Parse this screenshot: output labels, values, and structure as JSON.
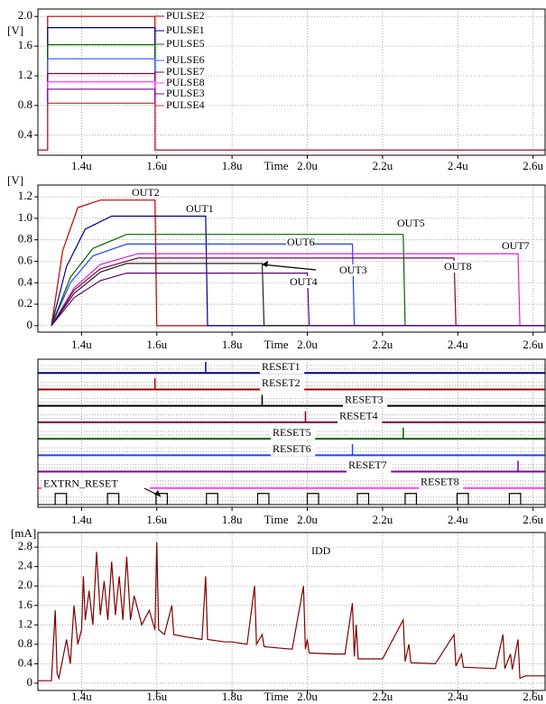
{
  "chart_data": [
    {
      "type": "line",
      "y_label": "[V]",
      "x_label": "Time",
      "xlim": [
        1.284,
        2.632
      ],
      "ylim": [
        0.13,
        2.1
      ],
      "xticks": [
        {
          "value": 1.4,
          "label": "1.4u"
        },
        {
          "value": 1.6,
          "label": "1.6u"
        },
        {
          "value": 1.8,
          "label": "1.8u"
        },
        {
          "value": 2.0,
          "label": "2.0u"
        },
        {
          "value": 2.2,
          "label": "2.2u"
        },
        {
          "value": 2.4,
          "label": "2.4u"
        },
        {
          "value": 2.6,
          "label": "2.6u"
        }
      ],
      "yticks": [
        0.4,
        0.8,
        1.2,
        1.6,
        {
          "value": 2,
          "label": "2.0"
        }
      ],
      "grid": true,
      "series": [
        {
          "name": "PULSE2",
          "color": "#c00000",
          "x": [
            1.284,
            1.31,
            1.31,
            1.595,
            1.595,
            2.632
          ],
          "values": [
            0.2,
            0.2,
            2.0,
            2.0,
            0.2,
            0.2
          ]
        },
        {
          "name": "PULSE1",
          "color": "#000080",
          "x": [
            1.284,
            1.31,
            1.31,
            1.595,
            1.595,
            2.632
          ],
          "values": [
            0.2,
            0.2,
            1.85,
            1.85,
            0.2,
            0.2
          ]
        },
        {
          "name": "PULSE5",
          "color": "#006400",
          "x": [
            1.284,
            1.31,
            1.31,
            1.595,
            1.595,
            2.632
          ],
          "values": [
            0.2,
            0.2,
            1.62,
            1.62,
            0.2,
            0.2
          ]
        },
        {
          "name": "PULSE6",
          "color": "#4060ff",
          "x": [
            1.284,
            1.31,
            1.31,
            1.595,
            1.595,
            2.632
          ],
          "values": [
            0.2,
            0.2,
            1.43,
            1.43,
            0.2,
            0.2
          ]
        },
        {
          "name": "PULSE7",
          "color": "#800040",
          "x": [
            1.284,
            1.31,
            1.31,
            1.595,
            1.595,
            2.632
          ],
          "values": [
            0.2,
            0.2,
            1.23,
            1.23,
            0.2,
            0.2
          ]
        },
        {
          "name": "PULSE8",
          "color": "#ff40ff",
          "x": [
            1.284,
            1.31,
            1.31,
            1.595,
            1.595,
            2.632
          ],
          "values": [
            0.2,
            0.2,
            1.12,
            1.12,
            0.2,
            0.2
          ]
        },
        {
          "name": "PULSE3",
          "color": "#8000a0",
          "x": [
            1.284,
            1.31,
            1.31,
            1.595,
            1.595,
            2.632
          ],
          "values": [
            0.2,
            0.2,
            1.02,
            1.02,
            0.2,
            0.2
          ]
        },
        {
          "name": "PULSE4",
          "color": "#c04040",
          "x": [
            1.284,
            1.31,
            1.31,
            1.595,
            1.595,
            2.632
          ],
          "values": [
            0.2,
            0.2,
            0.83,
            0.83,
            0.2,
            0.2
          ]
        }
      ]
    },
    {
      "type": "line",
      "y_label": "[V]",
      "x_label": "Time",
      "xlim": [
        1.284,
        2.632
      ],
      "ylim": [
        -0.06,
        1.31
      ],
      "xticks": [
        {
          "value": 1.4,
          "label": "1.4u"
        },
        {
          "value": 1.6,
          "label": "1.6u"
        },
        {
          "value": 1.8,
          "label": "1.8u"
        },
        {
          "value": 2.0,
          "label": "2.0u"
        },
        {
          "value": 2.2,
          "label": "2.2u"
        },
        {
          "value": 2.4,
          "label": "2.4u"
        },
        {
          "value": 2.6,
          "label": "2.6u"
        }
      ],
      "yticks": [
        0,
        0.2,
        0.4,
        0.6,
        0.8,
        {
          "value": 1,
          "label": "1.0"
        },
        1.2
      ],
      "grid": true,
      "series": [
        {
          "name": "OUT2",
          "color": "#c00000",
          "x": [
            1.32,
            1.35,
            1.39,
            1.45,
            1.595,
            1.6,
            2.632
          ],
          "values": [
            0,
            0.7,
            1.1,
            1.17,
            1.17,
            0,
            0
          ]
        },
        {
          "name": "OUT1",
          "color": "#000080",
          "x": [
            1.32,
            1.36,
            1.41,
            1.48,
            1.73,
            1.735,
            2.632
          ],
          "values": [
            0,
            0.55,
            0.9,
            1.02,
            1.02,
            0,
            0
          ]
        },
        {
          "name": "OUT6",
          "color": "#2040ff",
          "x": [
            1.32,
            1.37,
            1.43,
            1.52,
            2.12,
            2.125,
            2.632
          ],
          "values": [
            0,
            0.4,
            0.65,
            0.76,
            0.76,
            0,
            0
          ]
        },
        {
          "name": "OUT5",
          "color": "#006400",
          "x": [
            1.32,
            1.37,
            1.43,
            1.52,
            2.255,
            2.26,
            2.632
          ],
          "values": [
            0,
            0.45,
            0.72,
            0.85,
            0.85,
            0,
            0
          ]
        },
        {
          "name": "OUT7",
          "color": "#d020d0",
          "x": [
            1.32,
            1.38,
            1.45,
            1.55,
            2.56,
            2.565,
            2.632
          ],
          "values": [
            0,
            0.35,
            0.57,
            0.67,
            0.67,
            0,
            0
          ]
        },
        {
          "name": "OUT8",
          "color": "#800040",
          "x": [
            1.32,
            1.38,
            1.45,
            1.55,
            2.39,
            2.395,
            2.632
          ],
          "values": [
            0,
            0.33,
            0.53,
            0.63,
            0.63,
            0,
            0
          ]
        },
        {
          "name": "OUT3",
          "color": "#202020",
          "x": [
            1.32,
            1.38,
            1.45,
            1.52,
            1.88,
            1.885,
            2.632
          ],
          "values": [
            0,
            0.3,
            0.5,
            0.58,
            0.58,
            0,
            0
          ]
        },
        {
          "name": "OUT4",
          "color": "#600080",
          "x": [
            1.32,
            1.38,
            1.45,
            1.52,
            2.0,
            2.005,
            2.632
          ],
          "values": [
            0,
            0.26,
            0.42,
            0.49,
            0.49,
            0,
            0
          ]
        }
      ]
    },
    {
      "type": "digital",
      "x_label": "Time",
      "xlim": [
        1.284,
        2.632
      ],
      "xticks": [
        {
          "value": 1.4,
          "label": "1.4u"
        },
        {
          "value": 1.6,
          "label": "1.6u"
        },
        {
          "value": 1.8,
          "label": "1.8u"
        },
        {
          "value": 2.0,
          "label": "2.0u"
        },
        {
          "value": 2.2,
          "label": "2.2u"
        },
        {
          "value": 2.4,
          "label": "2.4u"
        },
        {
          "value": 2.6,
          "label": "2.6u"
        }
      ],
      "grid": true,
      "series": [
        {
          "name": "RESET1",
          "color": "#000080",
          "x": [
            1.73
          ]
        },
        {
          "name": "RESET2",
          "color": "#a00000",
          "x": [
            1.595
          ]
        },
        {
          "name": "RESET3",
          "color": "#000000",
          "x": [
            1.88
          ]
        },
        {
          "name": "RESET4",
          "color": "#800040",
          "x": [
            1.995
          ]
        },
        {
          "name": "RESET5",
          "color": "#006400",
          "x": [
            2.255
          ]
        },
        {
          "name": "RESET6",
          "color": "#2040ff",
          "x": [
            2.12
          ]
        },
        {
          "name": "RESET7",
          "color": "#8000a0",
          "x": [
            2.56
          ]
        },
        {
          "name": "RESET8",
          "color": "#ff40ff",
          "x": [
            2.39
          ]
        },
        {
          "name": "EXTRN_RESET",
          "color": "#000000",
          "x": [
            1.33,
            1.469,
            1.598,
            1.732,
            1.868,
            2.0,
            2.133,
            2.26,
            2.398,
            2.537
          ],
          "width": 0.03
        }
      ]
    },
    {
      "type": "line",
      "y_label": "[mA]",
      "x_label": "Time",
      "xlim": [
        1.284,
        2.632
      ],
      "ylim": [
        -0.15,
        3.1
      ],
      "xticks": [
        {
          "value": 1.4,
          "label": "1.4u"
        },
        {
          "value": 1.6,
          "label": "1.6u"
        },
        {
          "value": 1.8,
          "label": "1.8u"
        },
        {
          "value": 2.0,
          "label": "2.0u"
        },
        {
          "value": 2.2,
          "label": "2.2u"
        },
        {
          "value": 2.4,
          "label": "2.4u"
        },
        {
          "value": 2.6,
          "label": "2.6u"
        }
      ],
      "yticks": [
        0,
        0.4,
        0.8,
        1.2,
        1.6,
        {
          "value": 2,
          "label": "2.0"
        },
        2.4,
        2.8
      ],
      "grid": true,
      "series": [
        {
          "name": "IDD",
          "color": "#800000",
          "x": [
            1.284,
            1.32,
            1.33,
            1.335,
            1.34,
            1.36,
            1.37,
            1.38,
            1.39,
            1.4,
            1.405,
            1.41,
            1.42,
            1.43,
            1.44,
            1.45,
            1.46,
            1.47,
            1.48,
            1.49,
            1.5,
            1.51,
            1.52,
            1.53,
            1.54,
            1.56,
            1.58,
            1.595,
            1.6,
            1.605,
            1.62,
            1.64,
            1.645,
            1.68,
            1.72,
            1.73,
            1.735,
            1.78,
            1.8,
            1.84,
            1.86,
            1.865,
            1.88,
            1.885,
            1.93,
            1.96,
            1.99,
            1.995,
            2.0,
            2.005,
            2.07,
            2.1,
            2.12,
            2.125,
            2.13,
            2.135,
            2.2,
            2.255,
            2.26,
            2.27,
            2.275,
            2.34,
            2.39,
            2.395,
            2.41,
            2.415,
            2.5,
            2.52,
            2.525,
            2.54,
            2.545,
            2.56,
            2.565,
            2.58,
            2.632
          ],
          "values": [
            0.05,
            0.05,
            1.5,
            0.2,
            0.1,
            0.9,
            0.4,
            1.6,
            0.8,
            1.1,
            2.2,
            1.3,
            1.9,
            1.2,
            2.7,
            1.4,
            2.1,
            1.3,
            2.5,
            1.4,
            2.2,
            1.3,
            2.6,
            1.3,
            1.8,
            1.2,
            1.5,
            1.1,
            2.9,
            1.1,
            1.0,
            1.6,
            1.0,
            0.95,
            0.9,
            2.2,
            0.9,
            0.85,
            0.85,
            0.8,
            2.0,
            0.8,
            1.0,
            0.75,
            0.72,
            0.7,
            2.0,
            0.7,
            0.9,
            0.62,
            0.6,
            0.6,
            1.65,
            0.55,
            1.2,
            0.5,
            0.5,
            1.3,
            0.45,
            0.8,
            0.42,
            0.4,
            1.0,
            0.35,
            0.6,
            0.33,
            0.3,
            1.0,
            0.3,
            0.6,
            0.28,
            0.9,
            0.1,
            0.15,
            0.15
          ]
        }
      ]
    }
  ]
}
